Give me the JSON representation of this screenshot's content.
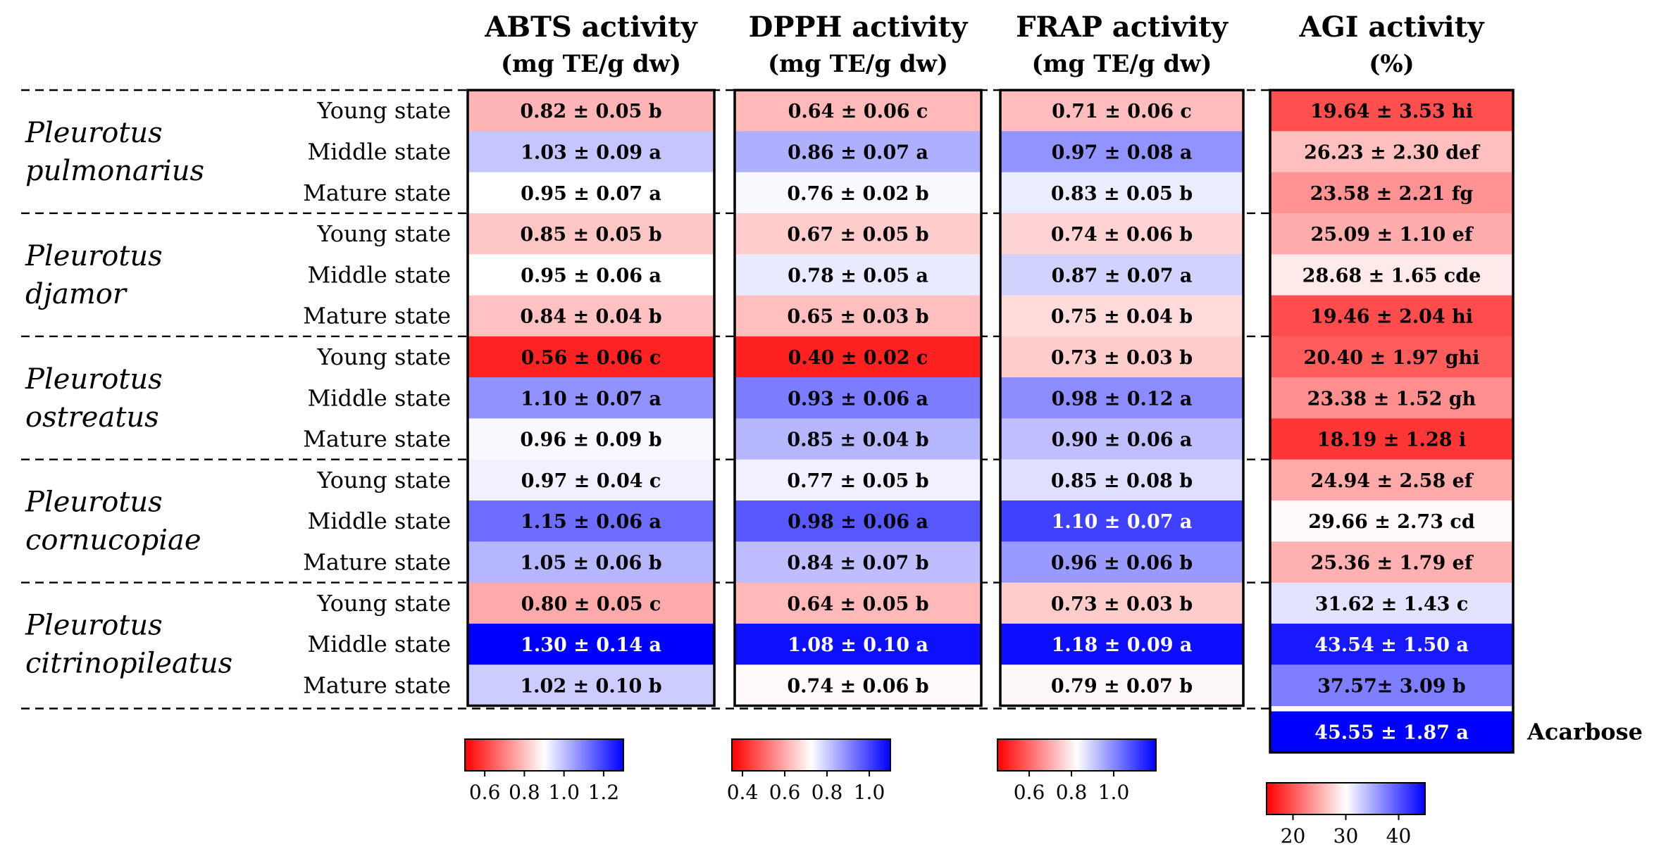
{
  "chart_data": {
    "type": "heatmap",
    "title": "",
    "species": [
      {
        "genus": "Pleurotus",
        "epithet": "pulmonarius"
      },
      {
        "genus": "Pleurotus",
        "epithet": "djamor"
      },
      {
        "genus": "Pleurotus",
        "epithet": "ostreatus"
      },
      {
        "genus": "Pleurotus",
        "epithet": "cornucopiae"
      },
      {
        "genus": "Pleurotus",
        "epithet": "citrinopileatus"
      }
    ],
    "states": [
      "Young state",
      "Middle state",
      "Mature state"
    ],
    "columns": [
      {
        "title": "ABTS activity",
        "unit": "(mg TE/g dw)",
        "scale": {
          "min": 0.5,
          "mid": 0.95,
          "max": 1.3,
          "ticks": [
            "0.6",
            "0.8",
            "1.0",
            "1.2"
          ],
          "tick_values": [
            0.6,
            0.8,
            1.0,
            1.2
          ]
        },
        "values": [
          0.82,
          1.03,
          0.95,
          0.85,
          0.95,
          0.84,
          0.56,
          1.1,
          0.96,
          0.97,
          1.15,
          1.05,
          0.8,
          1.3,
          1.02
        ],
        "labels": [
          "0.82 ± 0.05 b",
          "1.03 ± 0.09 a",
          "0.95 ± 0.07 a",
          "0.85 ± 0.05 b",
          "0.95 ± 0.06 a",
          "0.84 ± 0.04 b",
          "0.56 ± 0.06 c",
          "1.10 ± 0.07 a",
          "0.96 ± 0.09 b",
          "0.97 ± 0.04 c",
          "1.15 ± 0.06 a",
          "1.05 ± 0.06 b",
          "0.80 ± 0.05 c",
          "1.30 ± 0.14 a",
          "1.02 ± 0.10 b"
        ]
      },
      {
        "title": "DPPH activity",
        "unit": "(mg TE/g dw)",
        "scale": {
          "min": 0.35,
          "mid": 0.75,
          "max": 1.1,
          "ticks": [
            "0.4",
            "0.6",
            "0.8",
            "1.0"
          ],
          "tick_values": [
            0.4,
            0.6,
            0.8,
            1.0
          ]
        },
        "values": [
          0.64,
          0.86,
          0.76,
          0.67,
          0.78,
          0.65,
          0.4,
          0.93,
          0.85,
          0.77,
          0.98,
          0.84,
          0.64,
          1.08,
          0.74
        ],
        "labels": [
          "0.64 ± 0.06 c",
          "0.86 ± 0.07 a",
          "0.76 ± 0.02 b",
          "0.67 ± 0.05 b",
          "0.78 ± 0.05 a",
          "0.65 ± 0.03 b",
          "0.40 ± 0.02 c",
          "0.93 ± 0.06 a",
          "0.85 ± 0.04 b",
          "0.77 ± 0.05 b",
          "0.98 ± 0.06 a",
          "0.84 ± 0.07 b",
          "0.64 ± 0.05 b",
          "1.08 ± 0.10 a",
          "0.74 ± 0.06 b"
        ]
      },
      {
        "title": "FRAP activity",
        "unit": "(mg TE/g dw)",
        "scale": {
          "min": 0.45,
          "mid": 0.8,
          "max": 1.2,
          "ticks": [
            "0.6",
            "0.8",
            "1.0"
          ],
          "tick_values": [
            0.6,
            0.8,
            1.0
          ]
        },
        "values": [
          0.71,
          0.97,
          0.83,
          0.74,
          0.87,
          0.75,
          0.73,
          0.98,
          0.9,
          0.85,
          1.1,
          0.96,
          0.73,
          1.18,
          0.79
        ],
        "labels": [
          "0.71 ± 0.06 c",
          "0.97 ± 0.08 a",
          "0.83 ± 0.05 b",
          "0.74 ± 0.06 b",
          "0.87 ± 0.07 a",
          "0.75 ± 0.04 b",
          "0.73 ± 0.03 b",
          "0.98 ± 0.12 a",
          "0.90 ± 0.06 a",
          "0.85 ± 0.08 b",
          "1.10 ± 0.07 a",
          "0.96 ± 0.06 b",
          "0.73 ± 0.03 b",
          "1.18 ± 0.09 a",
          "0.79 ± 0.07 b"
        ]
      },
      {
        "title": "AGI activity",
        "unit": "(%)",
        "scale": {
          "min": 15,
          "mid": 30,
          "max": 45,
          "ticks": [
            "20",
            "30",
            "40"
          ],
          "tick_values": [
            20,
            30,
            40
          ]
        },
        "values": [
          19.64,
          26.23,
          23.58,
          25.09,
          28.68,
          19.46,
          20.4,
          23.38,
          18.19,
          24.94,
          29.66,
          25.36,
          31.62,
          43.54,
          37.57
        ],
        "labels": [
          "19.64 ± 3.53 hi",
          "26.23 ± 2.30 def",
          "23.58 ± 2.21 fg",
          "25.09 ± 1.10 ef",
          "28.68 ± 1.65 cde",
          "19.46 ± 2.04 hi",
          "20.40 ± 1.97 ghi",
          "23.38 ± 1.52 gh",
          "18.19 ± 1.28 i",
          "24.94 ± 2.58 ef",
          "29.66 ± 2.73 cd",
          "25.36 ± 1.79 ef",
          "31.62 ± 1.43 c",
          "43.54 ± 1.50 a",
          "37.57± 3.09 b"
        ],
        "extra": {
          "name": "Acarbose",
          "value": 45.55,
          "label": "45.55 ± 1.87 a"
        }
      }
    ]
  },
  "colors": {
    "low": "#ff0000",
    "mid": "#ffffff",
    "high": "#0000ff"
  }
}
